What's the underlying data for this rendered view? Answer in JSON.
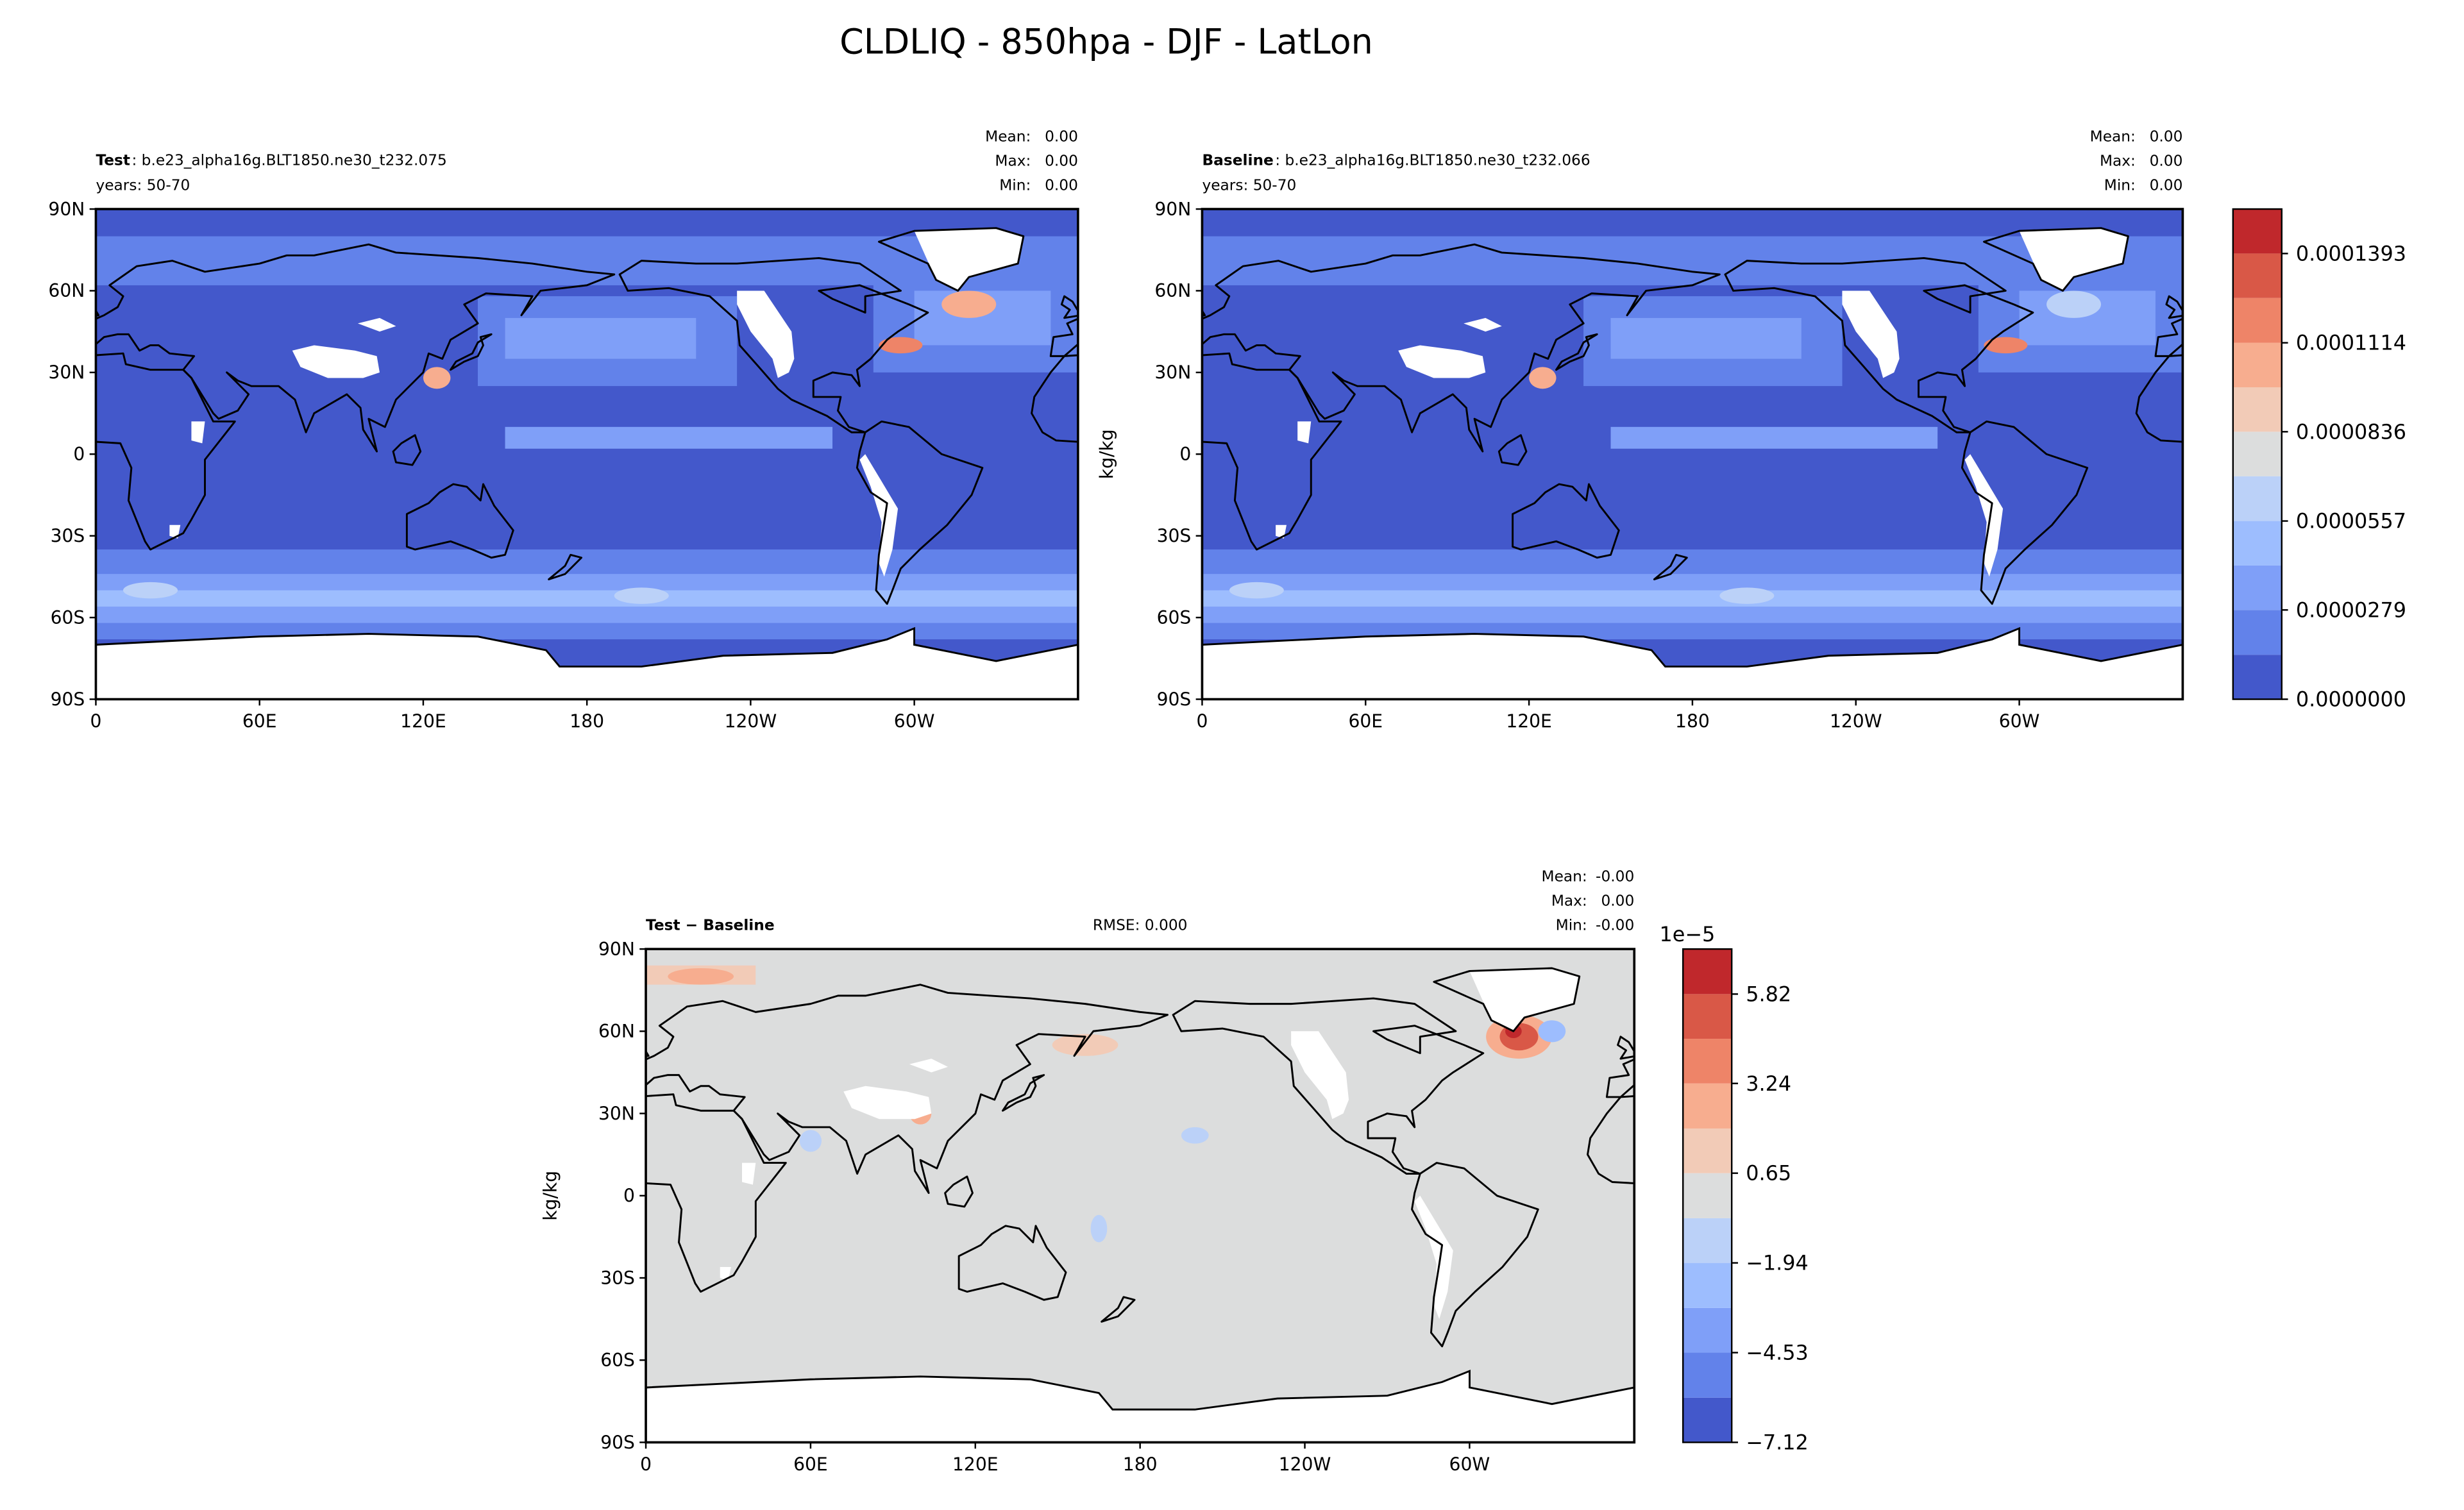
{
  "title": "CLDLIQ - 850hpa - DJF - LatLon",
  "chart_data": [
    {
      "type": "map",
      "label": "Test",
      "case": ": b.e23_alpha16g.BLT1850.ne30_t232.075",
      "years": "years: 50-70",
      "stats": [
        {
          "name": "Mean:",
          "value": "0.00"
        },
        {
          "name": "Max:",
          "value": "0.00"
        },
        {
          "name": "Min:",
          "value": "0.00"
        }
      ],
      "xlim": [
        0,
        360
      ],
      "ylim": [
        -90,
        90
      ],
      "xticks": [
        0,
        {
          "value": 60,
          "label": "60E"
        },
        {
          "value": 120,
          "label": "120E"
        },
        180,
        {
          "value": 240,
          "label": "120W"
        },
        {
          "value": 300,
          "label": "60W"
        }
      ],
      "yticks": [
        {
          "value": 90,
          "label": "90N"
        },
        {
          "value": 60,
          "label": "60N"
        },
        {
          "value": 30,
          "label": "30N"
        },
        0,
        {
          "value": -30,
          "label": "30S"
        },
        {
          "value": -60,
          "label": "60S"
        },
        {
          "value": -90,
          "label": "90S"
        }
      ]
    },
    {
      "type": "map",
      "label": "Baseline",
      "case": ": b.e23_alpha16g.BLT1850.ne30_t232.066",
      "years": "years: 50-70",
      "stats": [
        {
          "name": "Mean:",
          "value": "0.00"
        },
        {
          "name": "Max:",
          "value": "0.00"
        },
        {
          "name": "Min:",
          "value": "0.00"
        }
      ],
      "units": "kg/kg",
      "xlim": [
        0,
        360
      ],
      "ylim": [
        -90,
        90
      ],
      "xticks": [
        0,
        {
          "value": 60,
          "label": "60E"
        },
        {
          "value": 120,
          "label": "120E"
        },
        180,
        {
          "value": 240,
          "label": "120W"
        },
        {
          "value": 300,
          "label": "60W"
        }
      ],
      "yticks": [
        {
          "value": 90,
          "label": "90N"
        },
        {
          "value": 60,
          "label": "60N"
        },
        {
          "value": 30,
          "label": "30N"
        },
        0,
        {
          "value": -30,
          "label": "30S"
        },
        {
          "value": -60,
          "label": "60S"
        },
        {
          "value": -90,
          "label": "90S"
        }
      ],
      "colorbar": {
        "ylim": [
          0,
          0.0001532
        ],
        "levels": [
          0,
          1.39e-05,
          2.79e-05,
          4.18e-05,
          5.57e-05,
          6.97e-05,
          8.36e-05,
          9.75e-05,
          0.0001114,
          0.0001254,
          0.0001393,
          0.0001532
        ],
        "colors": [
          "#4358cb",
          "#6282ea",
          "#7f9ff8",
          "#9dbdfe",
          "#bbd1f8",
          "#dcdddd",
          "#f2cbb7",
          "#f7ad8f",
          "#ee8468",
          "#d95847",
          "#c0282c"
        ],
        "ticks": [
          {
            "value": 0,
            "label": "0.0000000"
          },
          2.79e-05,
          5.57e-05,
          8.36e-05,
          0.0001114,
          0.0001393
        ]
      }
    },
    {
      "type": "map",
      "label": "Test − Baseline",
      "rmse": "RMSE: 0.000",
      "stats": [
        {
          "name": "Mean:",
          "value": "-0.00"
        },
        {
          "name": "Max:",
          "value": "0.00"
        },
        {
          "name": "Min:",
          "value": "-0.00"
        }
      ],
      "units": "kg/kg",
      "xlim": [
        0,
        360
      ],
      "ylim": [
        -90,
        90
      ],
      "xticks": [
        0,
        {
          "value": 60,
          "label": "60E"
        },
        {
          "value": 120,
          "label": "120E"
        },
        180,
        {
          "value": 240,
          "label": "120W"
        },
        {
          "value": 300,
          "label": "60W"
        }
      ],
      "yticks": [
        {
          "value": 90,
          "label": "90N"
        },
        {
          "value": 60,
          "label": "60N"
        },
        {
          "value": 30,
          "label": "30N"
        },
        0,
        {
          "value": -30,
          "label": "30S"
        },
        {
          "value": -60,
          "label": "60S"
        },
        {
          "value": -90,
          "label": "90S"
        }
      ],
      "colorbar": {
        "scale_label": "1e−5",
        "ylim": [
          -7.12,
          7.12
        ],
        "levels": [
          -7.12,
          -5.83,
          -4.53,
          -3.24,
          -1.94,
          -0.65,
          0.65,
          1.94,
          3.24,
          4.53,
          5.82,
          7.12
        ],
        "colors": [
          "#4358cb",
          "#6282ea",
          "#7f9ff8",
          "#9dbdfe",
          "#bbd1f8",
          "#dcdddd",
          "#f2cbb7",
          "#f7ad8f",
          "#ee8468",
          "#d95847",
          "#c0282c"
        ],
        "ticks": [
          {
            "value": -7.12,
            "label": "−7.12"
          },
          {
            "value": -4.53,
            "label": "−4.53"
          },
          {
            "value": -1.94,
            "label": "−1.94"
          },
          0.65,
          3.24,
          5.82
        ]
      }
    }
  ]
}
